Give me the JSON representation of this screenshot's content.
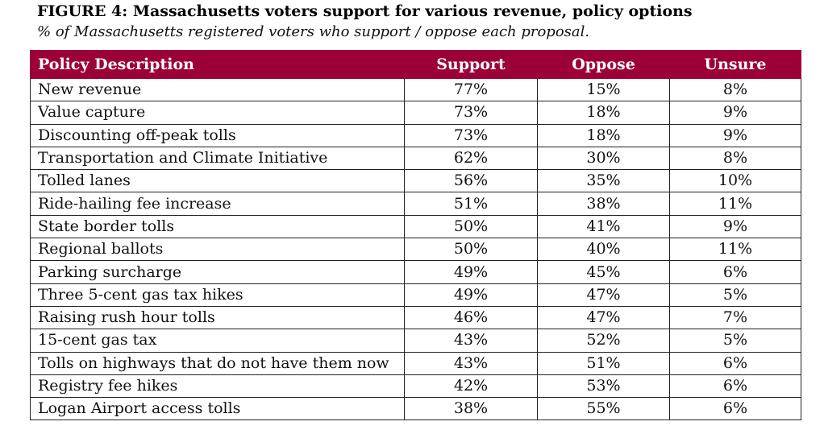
{
  "figure": {
    "title": "FIGURE 4: Massachusetts voters support for various revenue, policy options",
    "subtitle": "% of Massachusetts registered voters who support / oppose each proposal."
  },
  "colors": {
    "header_background": "#9b0038",
    "header_text": "#ffffff",
    "border": "#222222"
  },
  "table": {
    "headers": [
      "Policy Description",
      "Support",
      "Oppose",
      "Unsure"
    ],
    "rows": [
      {
        "policy": "New revenue",
        "support": "77%",
        "oppose": "15%",
        "unsure": "8%"
      },
      {
        "policy": "Value capture",
        "support": "73%",
        "oppose": "18%",
        "unsure": "9%"
      },
      {
        "policy": "Discounting off-peak tolls",
        "support": "73%",
        "oppose": "18%",
        "unsure": "9%"
      },
      {
        "policy": "Transportation and Climate Initiative",
        "support": "62%",
        "oppose": "30%",
        "unsure": "8%"
      },
      {
        "policy": "Tolled lanes",
        "support": "56%",
        "oppose": "35%",
        "unsure": "10%"
      },
      {
        "policy": "Ride-hailing fee increase",
        "support": "51%",
        "oppose": "38%",
        "unsure": "11%"
      },
      {
        "policy": "State border tolls",
        "support": "50%",
        "oppose": "41%",
        "unsure": "9%"
      },
      {
        "policy": "Regional ballots",
        "support": "50%",
        "oppose": "40%",
        "unsure": "11%"
      },
      {
        "policy": "Parking surcharge",
        "support": "49%",
        "oppose": "45%",
        "unsure": "6%"
      },
      {
        "policy": "Three 5-cent gas tax hikes",
        "support": "49%",
        "oppose": "47%",
        "unsure": "5%"
      },
      {
        "policy": "Raising rush hour tolls",
        "support": "46%",
        "oppose": "47%",
        "unsure": "7%"
      },
      {
        "policy": "15-cent gas tax",
        "support": "43%",
        "oppose": "52%",
        "unsure": "5%"
      },
      {
        "policy": "Tolls on highways that do not have them now",
        "support": "43%",
        "oppose": "51%",
        "unsure": "6%"
      },
      {
        "policy": "Registry fee hikes",
        "support": "42%",
        "oppose": "53%",
        "unsure": "6%"
      },
      {
        "policy": "Logan Airport access tolls",
        "support": "38%",
        "oppose": "55%",
        "unsure": "6%"
      }
    ]
  }
}
